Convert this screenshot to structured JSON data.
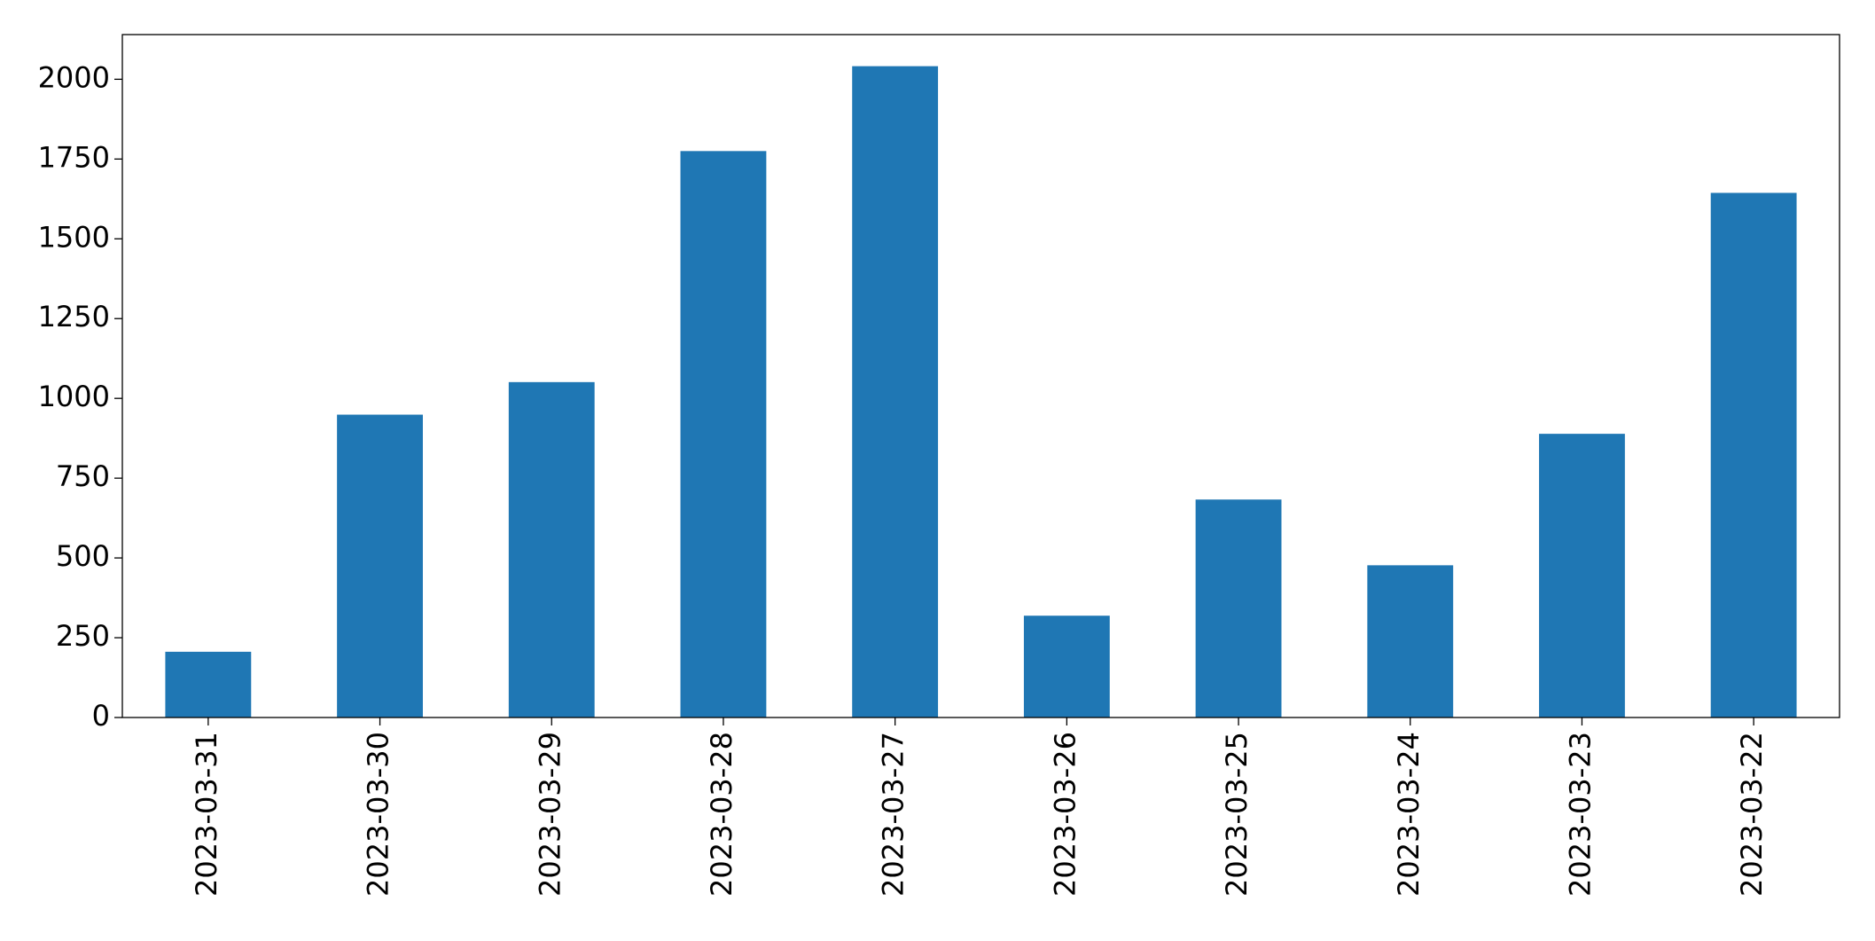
{
  "chart_data": {
    "type": "bar",
    "categories": [
      "2023-03-31",
      "2023-03-30",
      "2023-03-29",
      "2023-03-28",
      "2023-03-27",
      "2023-03-26",
      "2023-03-25",
      "2023-03-24",
      "2023-03-23",
      "2023-03-22"
    ],
    "values": [
      206,
      949,
      1051,
      1775,
      2041,
      319,
      683,
      477,
      889,
      1644
    ],
    "color": "#1f77b4",
    "ylim": [
      0,
      2140
    ],
    "yticks": [
      0,
      250,
      500,
      750,
      1000,
      1250,
      1500,
      1750,
      2000
    ],
    "grid": false
  }
}
